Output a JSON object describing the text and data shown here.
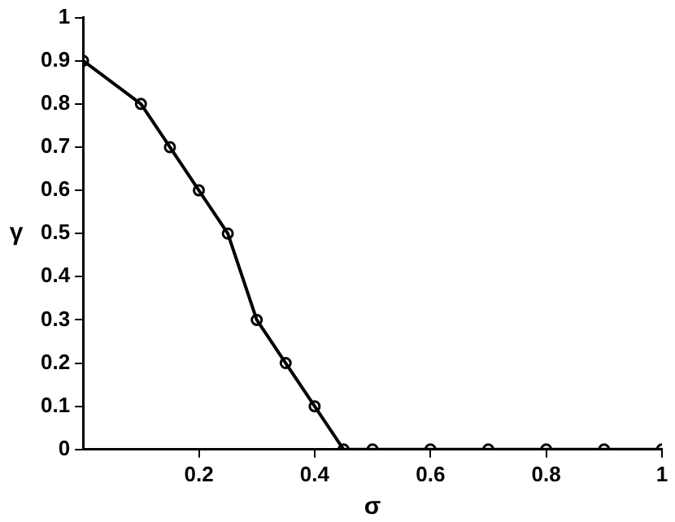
{
  "chart_data": {
    "type": "line",
    "xlabel": "σ",
    "ylabel": "γ",
    "x": [
      0,
      0.1,
      0.15,
      0.2,
      0.25,
      0.3,
      0.35,
      0.4,
      0.45,
      0.5,
      0.6,
      0.7,
      0.8,
      0.9,
      1
    ],
    "series": [
      {
        "color": "#000000",
        "values": [
          0.9,
          0.8,
          0.7,
          0.6,
          0.5,
          0.3,
          0.2,
          0.1,
          0,
          0,
          0,
          0,
          0,
          0,
          0
        ]
      }
    ],
    "xlim": [
      0,
      1
    ],
    "xticks": [
      0.2,
      0.4,
      0.6,
      0.8,
      1
    ],
    "ylim": [
      0,
      1
    ],
    "yticks": [
      0,
      0.1,
      0.2,
      0.3,
      0.4,
      0.5,
      0.6,
      0.7,
      0.8,
      0.9,
      1
    ],
    "grid": false,
    "legend": false,
    "marker": "circle",
    "line_style": "solid"
  }
}
